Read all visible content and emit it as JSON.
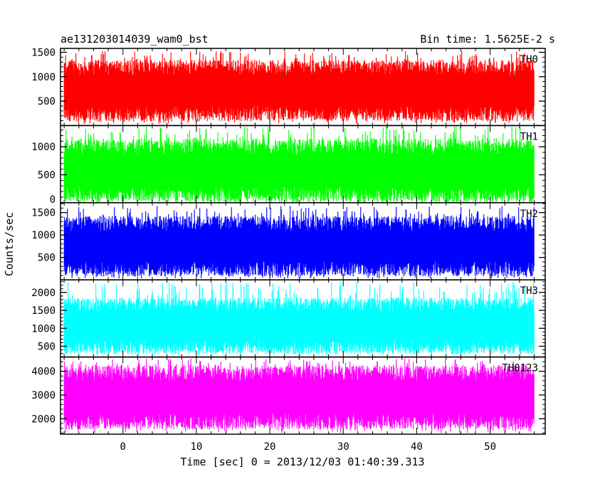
{
  "header": {
    "title": "ae131203014039_wam0_bst",
    "bin_time": "Bin time: 1.5625E-2 s"
  },
  "chart_data": {
    "type": "line",
    "title": "ae131203014039_wam0_bst",
    "xlabel": "Time [sec] 0 = 2013/12/03 01:40:39.313",
    "ylabel": "Counts/sec",
    "xlim": [
      -8.5,
      57.5
    ],
    "x_ticks": [
      0,
      10,
      20,
      30,
      40,
      50
    ],
    "x_minor_step": 2,
    "data_x_range": [
      -8,
      56
    ],
    "grid": false,
    "panels": [
      {
        "name": "TH0",
        "color": "#ff0000",
        "ylim": [
          0,
          1580
        ],
        "ticks": [
          500,
          1000,
          1500
        ],
        "minor_step": 100,
        "band": [
          250,
          1180
        ],
        "min": 30,
        "max": 1530
      },
      {
        "name": "TH1",
        "color": "#00ff00",
        "ylim": [
          0,
          1380
        ],
        "ticks": [
          0,
          500,
          1000
        ],
        "minor_step": 100,
        "band": [
          150,
          1000
        ],
        "min": 0,
        "max": 1370
      },
      {
        "name": "TH2",
        "color": "#0000ff",
        "ylim": [
          0,
          1720
        ],
        "ticks": [
          500,
          1000,
          1500
        ],
        "minor_step": 100,
        "band": [
          250,
          1250
        ],
        "min": 30,
        "max": 1650
      },
      {
        "name": "TH3",
        "color": "#00ffff",
        "ylim": [
          200,
          2350
        ],
        "ticks": [
          500,
          1000,
          1500,
          2000
        ],
        "minor_step": 100,
        "band": [
          480,
          1650
        ],
        "min": 250,
        "max": 2300
      },
      {
        "name": "TH0123",
        "color": "#ff00ff",
        "ylim": [
          1350,
          4600
        ],
        "ticks": [
          2000,
          3000,
          4000
        ],
        "minor_step": 200,
        "band": [
          1900,
          3900
        ],
        "min": 1400,
        "max": 4550
      }
    ]
  }
}
